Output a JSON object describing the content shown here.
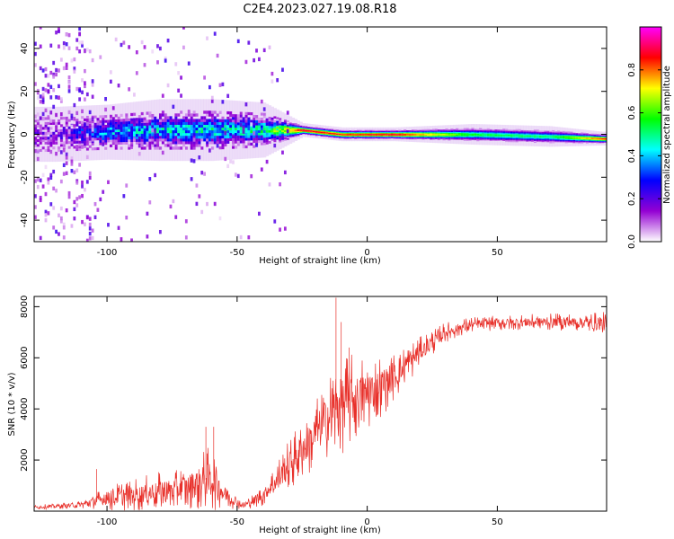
{
  "figure_title": "C2E4.2023.027.19.08.R18",
  "chart_data": [
    {
      "type": "heatmap",
      "xlabel": "Height of straight line (km)",
      "ylabel": "Frequency (Hz)",
      "xlim": [
        -128,
        92
      ],
      "ylim": [
        -50,
        50
      ],
      "x_ticks": [
        -100,
        -50,
        0,
        50
      ],
      "y_ticks": [
        -40,
        -20,
        0,
        20,
        40
      ],
      "colorbar": {
        "label": "Normalized spectral amplitude",
        "range": [
          0,
          1
        ],
        "ticks": [
          0.0,
          0.2,
          0.4,
          0.6,
          0.8
        ],
        "colors": [
          "#ffffff",
          "#9400d3",
          "#0000ff",
          "#00ffff",
          "#00ff00",
          "#ffff00",
          "#ff0000",
          "#ff00ff"
        ]
      },
      "ridge": [
        {
          "x": -120,
          "center": 0,
          "width": 8,
          "amplitude": 0.12
        },
        {
          "x": -100,
          "center": 1,
          "width": 8,
          "amplitude": 0.35
        },
        {
          "x": -80,
          "center": 2,
          "width": 9,
          "amplitude": 0.4
        },
        {
          "x": -60,
          "center": 2,
          "width": 9,
          "amplitude": 0.42
        },
        {
          "x": -40,
          "center": 2,
          "width": 8,
          "amplitude": 0.45
        },
        {
          "x": -25,
          "center": 2,
          "width": 2,
          "amplitude": 0.9
        },
        {
          "x": -10,
          "center": 0,
          "width": 2,
          "amplitude": 0.85
        },
        {
          "x": 10,
          "center": 0,
          "width": 2,
          "amplitude": 0.9
        },
        {
          "x": 40,
          "center": 0,
          "width": 3,
          "amplitude": 0.55
        },
        {
          "x": 70,
          "center": -1,
          "width": 3,
          "amplitude": 0.5
        },
        {
          "x": 90,
          "center": -2,
          "width": 2,
          "amplitude": 0.85
        }
      ]
    },
    {
      "type": "line",
      "xlabel": "Height of straight line (km)",
      "ylabel": "SNR (10 * v/v)",
      "xlim": [
        -128,
        92
      ],
      "ylim": [
        0,
        8400
      ],
      "x_ticks": [
        -100,
        -50,
        0,
        50
      ],
      "y_ticks": [
        2000,
        4000,
        6000,
        8000
      ],
      "color": "#e8302a",
      "envelope": [
        {
          "x": -128,
          "mean": 150,
          "noise": 80
        },
        {
          "x": -110,
          "mean": 250,
          "noise": 150
        },
        {
          "x": -100,
          "mean": 500,
          "noise": 500
        },
        {
          "x": -85,
          "mean": 700,
          "noise": 700
        },
        {
          "x": -70,
          "mean": 900,
          "noise": 900
        },
        {
          "x": -60,
          "mean": 1300,
          "noise": 1300
        },
        {
          "x": -55,
          "mean": 700,
          "noise": 600
        },
        {
          "x": -48,
          "mean": 200,
          "noise": 150
        },
        {
          "x": -40,
          "mean": 600,
          "noise": 400
        },
        {
          "x": -30,
          "mean": 1800,
          "noise": 1000
        },
        {
          "x": -20,
          "mean": 3000,
          "noise": 1400
        },
        {
          "x": -10,
          "mean": 4200,
          "noise": 2000
        },
        {
          "x": 0,
          "mean": 4600,
          "noise": 1500
        },
        {
          "x": 10,
          "mean": 5200,
          "noise": 1000
        },
        {
          "x": 20,
          "mean": 6200,
          "noise": 600
        },
        {
          "x": 30,
          "mean": 7000,
          "noise": 400
        },
        {
          "x": 40,
          "mean": 7300,
          "noise": 300
        },
        {
          "x": 60,
          "mean": 7400,
          "noise": 300
        },
        {
          "x": 80,
          "mean": 7400,
          "noise": 350
        },
        {
          "x": 92,
          "mean": 7300,
          "noise": 500
        }
      ],
      "spikes": [
        {
          "x": -12,
          "y": 8350
        },
        {
          "x": -10,
          "y": 7400
        },
        {
          "x": -7,
          "y": 6400
        },
        {
          "x": -62,
          "y": 3300
        },
        {
          "x": -59,
          "y": 3300
        },
        {
          "x": -104,
          "y": 1650
        }
      ]
    }
  ]
}
